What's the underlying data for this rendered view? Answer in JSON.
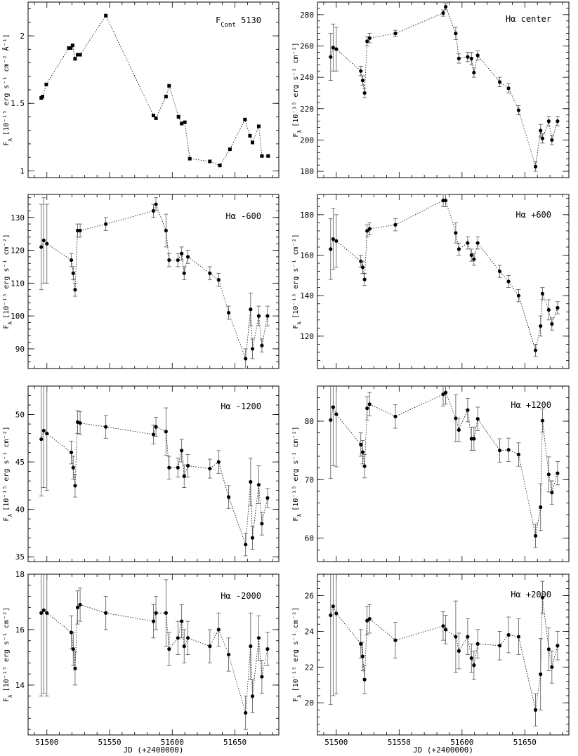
{
  "figure": {
    "xlabel": "JD (+2400000)",
    "xlim": [
      51485,
      51685
    ],
    "xticks": [
      51500,
      51550,
      51600,
      51650
    ]
  },
  "chart_data": [
    {
      "type": "scatter",
      "title": "F_Cont 5130",
      "title_main": "F",
      "title_sub": "Cont",
      "title_rest": " 5130",
      "ylabel": "F_λ [10^-15 erg s^-1 cm^-2 Å^-1]",
      "ylabel_unit": "[10⁻¹⁵ erg s⁻¹ cm⁻² Å⁻¹]",
      "ylim": [
        0.95,
        2.25
      ],
      "yticks": [
        1,
        1.5,
        2
      ],
      "ytick_labels": [
        "1",
        "1.5",
        "2"
      ],
      "errorbars": false,
      "series": [
        {
          "x": [
            51495.5,
            51496.5,
            51499.5,
            51517.5,
            51519.0,
            51520.5,
            51522.5,
            51524.5,
            51526.5,
            51547.0,
            51585.0,
            51587.0,
            51595.0,
            51597.5,
            51605.0,
            51607.5,
            51610.0,
            51614.0,
            51630.0,
            51638.0,
            51646.0,
            51658.0,
            51662.0,
            51664.0,
            51669.0,
            51671.5,
            51676.5
          ],
          "y": [
            1.54,
            1.55,
            1.64,
            1.91,
            1.91,
            1.93,
            1.83,
            1.86,
            1.86,
            2.15,
            1.41,
            1.39,
            1.55,
            1.63,
            1.4,
            1.35,
            1.36,
            1.09,
            1.07,
            1.04,
            1.16,
            1.38,
            1.26,
            1.21,
            1.33,
            1.11,
            1.11
          ],
          "err": [
            0.02,
            0.02,
            0.02,
            0.01,
            0.01,
            0.01,
            0.01,
            0.01,
            0.01,
            0.01,
            0.01,
            0.01,
            0.02,
            0.02,
            0.01,
            0.01,
            0.02,
            0.01,
            0.01,
            0.01,
            0.01,
            0.02,
            0.02,
            0.01,
            0.02,
            0.01,
            0.01
          ]
        }
      ]
    },
    {
      "type": "scatter",
      "title": "Hα center",
      "title_main": "Hα center",
      "title_sub": "",
      "title_rest": "",
      "ylabel": "F_λ [10^-15 erg s^-1 cm^-2]",
      "ylabel_unit": "[10⁻¹⁵ erg s⁻¹ cm⁻²]",
      "ylim": [
        176,
        288
      ],
      "yticks": [
        180,
        200,
        220,
        240,
        260,
        280
      ],
      "ytick_labels": [
        "180",
        "200",
        "220",
        "240",
        "260",
        "280"
      ],
      "errorbars": true,
      "series": [
        {
          "x": [
            51495.5,
            51497.5,
            51500.0,
            51519.5,
            51521.0,
            51522.5,
            51524.5,
            51526.5,
            51547.0,
            51585.0,
            51587.0,
            51595.0,
            51597.5,
            51604.5,
            51607.5,
            51609.5,
            51612.5,
            51630.0,
            51637.0,
            51645.0,
            51658.5,
            51662.5,
            51664.0,
            51669.0,
            51671.5,
            51676.0
          ],
          "y": [
            253,
            259,
            258,
            244,
            238,
            230,
            263,
            265,
            268,
            281,
            285,
            268,
            252,
            253,
            252,
            243,
            254,
            237,
            233,
            219,
            183,
            206,
            201,
            212,
            200,
            212
          ],
          "err": [
            15,
            15,
            14,
            3,
            3,
            3,
            3,
            3,
            2,
            2,
            2,
            4,
            3,
            3,
            4,
            3,
            3,
            3,
            3,
            3,
            3,
            4,
            3,
            3,
            3,
            3
          ]
        }
      ]
    },
    {
      "type": "scatter",
      "title": "Hα -600",
      "title_main": "Hα -600",
      "title_sub": "",
      "title_rest": "",
      "ylabel": "F_λ [10^-15 erg s^-1 cm^-2]",
      "ylabel_unit": "[10⁻¹⁵ erg s⁻¹ cm⁻²]",
      "ylim": [
        84,
        137
      ],
      "yticks": [
        90,
        100,
        110,
        120,
        130
      ],
      "ytick_labels": [
        "90",
        "100",
        "110",
        "120",
        "130"
      ],
      "errorbars": true,
      "series": [
        {
          "x": [
            51495.5,
            51497.5,
            51500.0,
            51519.5,
            51521.0,
            51522.5,
            51524.5,
            51526.5,
            51547.0,
            51585.0,
            51587.0,
            51595.0,
            51597.5,
            51604.5,
            51607.5,
            51609.5,
            51612.5,
            51630.0,
            51637.0,
            51645.0,
            51658.5,
            51662.5,
            51664.0,
            51669.0,
            51671.5,
            51676.0
          ],
          "y": [
            121,
            123,
            122,
            117,
            113,
            108,
            126,
            126,
            128,
            132,
            134,
            126,
            117,
            117,
            119,
            113,
            118,
            113,
            111,
            101,
            87,
            102,
            90,
            100,
            91,
            100
          ],
          "err": [
            13,
            13,
            12,
            2,
            2,
            2,
            2,
            2,
            2,
            2,
            2,
            5,
            2,
            2,
            2,
            2,
            2,
            2,
            2,
            2,
            3,
            5,
            3,
            3,
            2,
            3
          ]
        }
      ]
    },
    {
      "type": "scatter",
      "title": "Hα +600",
      "title_main": "Hα +600",
      "title_sub": "",
      "title_rest": "",
      "ylabel": "F_λ [10^-15 erg s^-1 cm^-2]",
      "ylabel_unit": "[10⁻¹⁵ erg s⁻¹ cm⁻²]",
      "ylim": [
        104,
        190
      ],
      "yticks": [
        120,
        140,
        160,
        180
      ],
      "ytick_labels": [
        "120",
        "140",
        "160",
        "180"
      ],
      "errorbars": true,
      "series": [
        {
          "x": [
            51495.5,
            51497.5,
            51500.0,
            51519.5,
            51521.0,
            51522.5,
            51524.5,
            51526.5,
            51547.0,
            51585.0,
            51587.0,
            51595.0,
            51597.5,
            51604.5,
            51607.5,
            51609.5,
            51612.5,
            51630.0,
            51637.0,
            51645.0,
            51658.5,
            51662.5,
            51664.0,
            51669.0,
            51671.5,
            51676.0
          ],
          "y": [
            163,
            168,
            167,
            157,
            154,
            148,
            172,
            173,
            175,
            187,
            187,
            171,
            163,
            166,
            160,
            158,
            166,
            152,
            147,
            140,
            113,
            125,
            141,
            133,
            126,
            134
          ],
          "err": [
            15,
            15,
            13,
            3,
            3,
            3,
            3,
            3,
            3,
            3,
            3,
            5,
            3,
            3,
            3,
            3,
            3,
            3,
            3,
            3,
            3,
            5,
            3,
            5,
            3,
            3
          ]
        }
      ]
    },
    {
      "type": "scatter",
      "title": "Hα -1200",
      "title_main": "Hα -1200",
      "title_sub": "",
      "title_rest": "",
      "ylabel": "F_λ [10^-15 erg s^-1 cm^-2]",
      "ylabel_unit": "[10⁻¹⁵ erg s⁻¹ cm⁻²]",
      "ylim": [
        34.5,
        53
      ],
      "yticks": [
        35,
        40,
        45,
        50
      ],
      "ytick_labels": [
        "35",
        "40",
        "45",
        "50"
      ],
      "errorbars": true,
      "series": [
        {
          "x": [
            51495.5,
            51497.5,
            51500.0,
            51519.5,
            51521.0,
            51522.5,
            51524.5,
            51526.5,
            51547.0,
            51585.0,
            51587.0,
            51595.0,
            51597.5,
            51604.5,
            51607.5,
            51609.5,
            51612.5,
            51630.0,
            51637.0,
            51645.0,
            51658.5,
            51662.5,
            51664.0,
            51669.0,
            51671.5,
            51676.0
          ],
          "y": [
            47.4,
            48.3,
            48.0,
            46.0,
            44.4,
            42.5,
            49.2,
            49.1,
            48.7,
            47.9,
            48.7,
            48.2,
            44.4,
            44.4,
            46.2,
            43.5,
            44.6,
            44.3,
            45.0,
            41.3,
            36.3,
            42.9,
            37.0,
            42.6,
            38.5,
            41.2
          ],
          "err": [
            6.0,
            6.0,
            6.0,
            1.2,
            1.2,
            1.2,
            1.2,
            1.2,
            1.2,
            1.0,
            1.0,
            2.5,
            1.2,
            1.0,
            1.2,
            1.2,
            1.2,
            1.0,
            1.2,
            1.2,
            1.2,
            2.5,
            1.2,
            2.0,
            1.2,
            1.0
          ]
        }
      ]
    },
    {
      "type": "scatter",
      "title": "Hα +1200",
      "title_main": "Hα +1200",
      "title_sub": "",
      "title_rest": "",
      "ylabel": "F_λ [10^-15 erg s^-1 cm^-2]",
      "ylabel_unit": "[10⁻¹⁵ erg s⁻¹ cm⁻²]",
      "ylim": [
        56,
        86
      ],
      "yticks": [
        60,
        70,
        80
      ],
      "ytick_labels": [
        "60",
        "70",
        "80"
      ],
      "errorbars": true,
      "series": [
        {
          "x": [
            51495.5,
            51497.5,
            51500.0,
            51519.5,
            51521.0,
            51522.5,
            51524.5,
            51526.5,
            51547.0,
            51585.0,
            51587.0,
            51595.0,
            51597.5,
            51604.5,
            51607.5,
            51609.5,
            51612.5,
            51630.0,
            51637.0,
            51645.0,
            51658.5,
            51662.5,
            51664.0,
            51669.0,
            51671.5,
            51676.0
          ],
          "y": [
            80.2,
            82.4,
            81.2,
            76.0,
            74.7,
            72.3,
            82.2,
            82.9,
            80.8,
            84.6,
            84.9,
            80.5,
            78.5,
            81.9,
            77.0,
            77.0,
            80.4,
            75.0,
            75.1,
            74.3,
            60.4,
            65.3,
            80.1,
            70.9,
            67.8,
            71.1
          ],
          "err": [
            10,
            10,
            9,
            2,
            2,
            2,
            2,
            2,
            2,
            2,
            2,
            4,
            2,
            2,
            2,
            2,
            2,
            2,
            2,
            2,
            2,
            4,
            2,
            3,
            2,
            2
          ]
        }
      ]
    },
    {
      "type": "scatter",
      "title": "Hα -2000",
      "title_main": "Hα -2000",
      "title_sub": "",
      "title_rest": "",
      "ylabel": "F_λ [10^-15 erg s^-1 cm^-2]",
      "ylabel_unit": "[10⁻¹⁵ erg s⁻¹ cm⁻²]",
      "ylim": [
        12.2,
        18
      ],
      "yticks": [
        14,
        16,
        18
      ],
      "ytick_labels": [
        "14",
        "16",
        "18"
      ],
      "errorbars": true,
      "series": [
        {
          "x": [
            51495.5,
            51497.5,
            51500.0,
            51519.5,
            51521.0,
            51522.5,
            51524.5,
            51526.5,
            51547.0,
            51585.0,
            51587.0,
            51595.0,
            51597.5,
            51604.5,
            51607.5,
            51609.5,
            51612.5,
            51630.0,
            51637.0,
            51645.0,
            51658.5,
            51662.5,
            51664.0,
            51669.0,
            51671.5,
            51676.0
          ],
          "y": [
            16.6,
            16.7,
            16.6,
            15.9,
            15.3,
            14.6,
            16.8,
            16.9,
            16.6,
            16.3,
            16.6,
            16.6,
            15.3,
            15.7,
            16.3,
            15.4,
            15.7,
            15.4,
            16.0,
            15.1,
            13.0,
            15.4,
            13.6,
            15.7,
            14.3,
            15.3
          ],
          "err": [
            3.0,
            3.0,
            3.0,
            0.6,
            0.6,
            0.6,
            0.6,
            0.6,
            0.6,
            0.6,
            0.6,
            1.2,
            0.6,
            0.6,
            0.6,
            0.6,
            0.6,
            0.6,
            0.6,
            0.6,
            0.6,
            1.2,
            0.6,
            0.8,
            0.6,
            0.6
          ]
        }
      ]
    },
    {
      "type": "scatter",
      "title": "Hα +2000",
      "title_main": "Hα +2000",
      "title_sub": "",
      "title_rest": "",
      "ylabel": "F_λ [10^-15 erg s^-1 cm^-2]",
      "ylabel_unit": "[10⁻¹⁵ erg s⁻¹ cm⁻²]",
      "ylim": [
        18.2,
        27.2
      ],
      "yticks": [
        20,
        22,
        24,
        26
      ],
      "ytick_labels": [
        "20",
        "22",
        "24",
        "26"
      ],
      "errorbars": true,
      "series": [
        {
          "x": [
            51495.5,
            51497.5,
            51500.0,
            51519.5,
            51521.0,
            51522.5,
            51524.5,
            51526.5,
            51547.0,
            51585.0,
            51587.0,
            51595.0,
            51597.5,
            51604.5,
            51607.5,
            51609.5,
            51612.5,
            51630.0,
            51637.0,
            51645.0,
            51658.5,
            51662.5,
            51664.0,
            51669.0,
            51671.5,
            51676.0
          ],
          "y": [
            24.9,
            25.4,
            25.0,
            23.3,
            22.6,
            21.3,
            24.6,
            24.7,
            23.5,
            24.3,
            24.1,
            23.7,
            22.9,
            23.7,
            22.5,
            22.1,
            23.3,
            23.2,
            23.8,
            23.7,
            19.6,
            21.6,
            25.9,
            23.0,
            22.0,
            23.2
          ],
          "err": [
            5.0,
            5.0,
            4.5,
            0.8,
            0.8,
            0.8,
            0.8,
            0.8,
            1.0,
            0.8,
            0.8,
            2.0,
            1.0,
            1.0,
            0.8,
            0.8,
            0.8,
            0.8,
            1.0,
            1.0,
            0.9,
            2.0,
            0.9,
            1.2,
            0.9,
            0.8
          ]
        }
      ]
    }
  ]
}
